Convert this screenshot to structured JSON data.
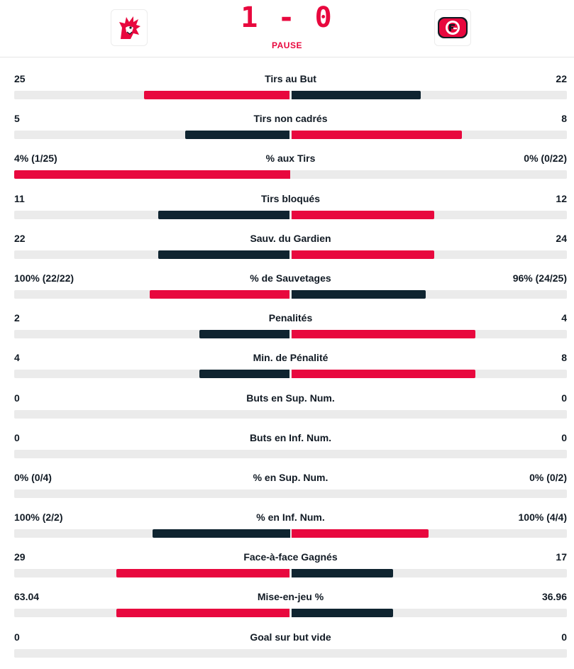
{
  "match": {
    "score": "1 - 0",
    "status": "PAUSE",
    "home_team": {
      "logo_icon": "lausanne-lion-logo-icon"
    },
    "away_team": {
      "logo_icon": "fribourg-gotteron-logo-icon"
    }
  },
  "colors": {
    "highlight": "#e8083e",
    "dark": "#0f2430",
    "track": "#ebebeb"
  },
  "stats": [
    {
      "label": "Tirs au But",
      "home": "25",
      "away": "22",
      "home_fill": 0.53,
      "away_fill": 0.47,
      "home_leads": true
    },
    {
      "label": "Tirs non cadrés",
      "home": "5",
      "away": "8",
      "home_fill": 0.38,
      "away_fill": 0.62,
      "home_leads": false
    },
    {
      "label": "% aux Tirs",
      "home": "4% (1/25)",
      "away": "0% (0/22)",
      "home_fill": 1.0,
      "away_fill": 0.0,
      "home_leads": true
    },
    {
      "label": "Tirs bloqués",
      "home": "11",
      "away": "12",
      "home_fill": 0.48,
      "away_fill": 0.52,
      "home_leads": false
    },
    {
      "label": "Sauv. du Gardien",
      "home": "22",
      "away": "24",
      "home_fill": 0.48,
      "away_fill": 0.52,
      "home_leads": false
    },
    {
      "label": "% de Sauvetages",
      "home": "100% (22/22)",
      "away": "96% (24/25)",
      "home_fill": 0.51,
      "away_fill": 0.49,
      "home_leads": true
    },
    {
      "label": "Penalités",
      "home": "2",
      "away": "4",
      "home_fill": 0.33,
      "away_fill": 0.67,
      "home_leads": false
    },
    {
      "label": "Min. de Pénalité",
      "home": "4",
      "away": "8",
      "home_fill": 0.33,
      "away_fill": 0.67,
      "home_leads": false
    },
    {
      "label": "Buts en Sup. Num.",
      "home": "0",
      "away": "0",
      "home_fill": 0,
      "away_fill": 0,
      "home_leads": false
    },
    {
      "label": "Buts en Inf. Num.",
      "home": "0",
      "away": "0",
      "home_fill": 0,
      "away_fill": 0,
      "home_leads": false
    },
    {
      "label": "% en Sup. Num.",
      "home": "0% (0/4)",
      "away": "0% (0/2)",
      "home_fill": 0,
      "away_fill": 0,
      "home_leads": false
    },
    {
      "label": "% en Inf. Num.",
      "home": "100% (2/2)",
      "away": "100% (4/4)",
      "home_fill": 0.5,
      "away_fill": 0.5,
      "home_leads": false
    },
    {
      "label": "Face-à-face Gagnés",
      "home": "29",
      "away": "17",
      "home_fill": 0.63,
      "away_fill": 0.37,
      "home_leads": true
    },
    {
      "label": "Mise-en-jeu %",
      "home": "63.04",
      "away": "36.96",
      "home_fill": 0.63,
      "away_fill": 0.37,
      "home_leads": true
    },
    {
      "label": "Goal sur but vide",
      "home": "0",
      "away": "0",
      "home_fill": 0,
      "away_fill": 0,
      "home_leads": false
    }
  ]
}
